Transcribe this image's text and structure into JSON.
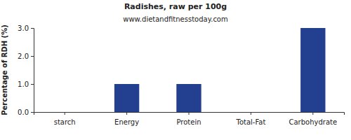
{
  "chart_data": {
    "type": "bar",
    "title": "Radishes, raw per 100g",
    "subtitle": "www.dietandfitnesstoday.com",
    "y_label": "Percentage of RDH (%)",
    "categories": [
      "starch",
      "Energy",
      "Protein",
      "Total-Fat",
      "Carbohydrate"
    ],
    "values": [
      0,
      1,
      1,
      0,
      3
    ],
    "color": "#233f8f",
    "ylim": [
      0,
      3
    ],
    "yticks": [
      {
        "value": 0,
        "label": "0.0"
      },
      {
        "value": 1,
        "label": "1.0"
      },
      {
        "value": 2,
        "label": "2.0"
      },
      {
        "value": 3,
        "label": "3.0"
      }
    ],
    "grid": false
  }
}
